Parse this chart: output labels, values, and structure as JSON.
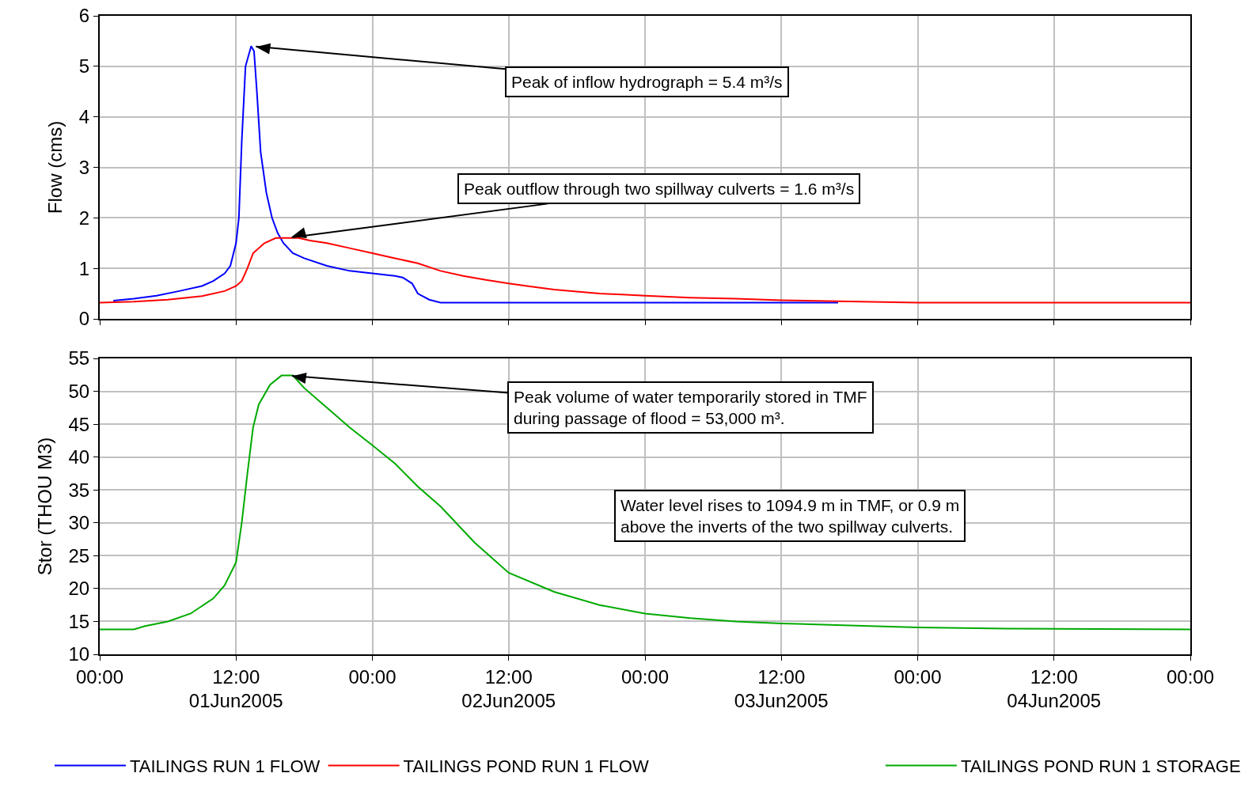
{
  "chart_data": [
    {
      "type": "line",
      "ylabel": "Flow (cms)",
      "tick_labels": "y",
      "xlim": [
        "2005-06-01T00:00",
        "2005-06-05T00:00"
      ],
      "xticks": [
        {
          "value": "2005-06-01T00:00",
          "label": null
        },
        {
          "value": "2005-06-01T12:00",
          "label": null
        },
        {
          "value": "2005-06-02T00:00",
          "label": null
        },
        {
          "value": "2005-06-02T12:00",
          "label": null
        },
        {
          "value": "2005-06-03T00:00",
          "label": null
        },
        {
          "value": "2005-06-03T12:00",
          "label": null
        },
        {
          "value": "2005-06-04T00:00",
          "label": null
        },
        {
          "value": "2005-06-04T12:00",
          "label": null
        },
        {
          "value": "2005-06-05T00:00",
          "label": null
        }
      ],
      "ylim": [
        0,
        6
      ],
      "yticks": [
        0,
        1,
        2,
        3,
        4,
        5,
        6
      ],
      "grid": true,
      "legend": "bottom left",
      "series": [
        {
          "name": "TAILINGS RUN 1 FLOW",
          "color": "#0000ff",
          "x": [
            "2005-06-01T01:12",
            "2005-06-01T03:00",
            "2005-06-01T05:00",
            "2005-06-01T07:00",
            "2005-06-01T09:00",
            "2005-06-01T10:00",
            "2005-06-01T11:00",
            "2005-06-01T11:30",
            "2005-06-01T12:00",
            "2005-06-01T12:15",
            "2005-06-01T12:30",
            "2005-06-01T12:50",
            "2005-06-01T13:20",
            "2005-06-01T13:35",
            "2005-06-01T13:50",
            "2005-06-01T14:10",
            "2005-06-01T14:40",
            "2005-06-01T15:10",
            "2005-06-01T15:40",
            "2005-06-01T16:10",
            "2005-06-01T17:00",
            "2005-06-01T18:00",
            "2005-06-01T20:00",
            "2005-06-01T22:00",
            "2005-06-02T00:00",
            "2005-06-02T02:00",
            "2005-06-02T02:40",
            "2005-06-02T03:30",
            "2005-06-02T04:00",
            "2005-06-02T05:00",
            "2005-06-02T06:00",
            "2005-06-03T17:00"
          ],
          "values": [
            0.36,
            0.4,
            0.46,
            0.55,
            0.65,
            0.75,
            0.9,
            1.05,
            1.5,
            2.0,
            3.5,
            5.0,
            5.4,
            5.3,
            4.5,
            3.3,
            2.5,
            2.0,
            1.7,
            1.5,
            1.3,
            1.2,
            1.05,
            0.95,
            0.9,
            0.85,
            0.82,
            0.7,
            0.5,
            0.38,
            0.32,
            0.32
          ]
        },
        {
          "name": "TAILINGS POND RUN 1 FLOW",
          "color": "#ff0000",
          "x": [
            "2005-06-01T00:00",
            "2005-06-01T03:00",
            "2005-06-01T06:00",
            "2005-06-01T09:00",
            "2005-06-01T11:00",
            "2005-06-01T12:00",
            "2005-06-01T12:30",
            "2005-06-01T13:00",
            "2005-06-01T13:30",
            "2005-06-01T14:30",
            "2005-06-01T15:30",
            "2005-06-01T17:30",
            "2005-06-01T18:30",
            "2005-06-01T20:00",
            "2005-06-01T22:00",
            "2005-06-02T00:00",
            "2005-06-02T02:00",
            "2005-06-02T04:00",
            "2005-06-02T06:00",
            "2005-06-02T08:00",
            "2005-06-02T10:00",
            "2005-06-02T12:00",
            "2005-06-02T14:00",
            "2005-06-02T16:00",
            "2005-06-02T18:00",
            "2005-06-02T20:00",
            "2005-06-02T22:00",
            "2005-06-03T00:00",
            "2005-06-03T04:00",
            "2005-06-03T08:00",
            "2005-06-03T12:00",
            "2005-06-03T17:00",
            "2005-06-04T00:00",
            "2005-06-05T00:00"
          ],
          "values": [
            0.32,
            0.34,
            0.38,
            0.45,
            0.55,
            0.65,
            0.75,
            1.0,
            1.3,
            1.5,
            1.6,
            1.6,
            1.55,
            1.5,
            1.4,
            1.3,
            1.2,
            1.1,
            0.95,
            0.85,
            0.77,
            0.7,
            0.64,
            0.58,
            0.54,
            0.5,
            0.48,
            0.46,
            0.42,
            0.4,
            0.37,
            0.35,
            0.32,
            0.32
          ]
        }
      ],
      "annotations": [
        {
          "text": "Peak of inflow hydrograph = 5.4 m³/s",
          "x": "2005-06-01T13:20",
          "y": 5.4
        },
        {
          "text": "Peak outflow through two spillway culverts = 1.6 m³/s",
          "x": "2005-06-01T16:30",
          "y": 1.6
        }
      ]
    },
    {
      "type": "line",
      "ylabel": "Stor (THOU M3)",
      "xlim": [
        "2005-06-01T00:00",
        "2005-06-05T00:00"
      ],
      "xticks": [
        {
          "value": "2005-06-01T00:00",
          "label": "00:00"
        },
        {
          "value": "2005-06-01T12:00",
          "label": "12:00"
        },
        {
          "value": "2005-06-02T00:00",
          "label": "00:00"
        },
        {
          "value": "2005-06-02T12:00",
          "label": "12:00"
        },
        {
          "value": "2005-06-03T00:00",
          "label": "00:00"
        },
        {
          "value": "2005-06-03T12:00",
          "label": "12:00"
        },
        {
          "value": "2005-06-04T00:00",
          "label": "00:00"
        },
        {
          "value": "2005-06-04T12:00",
          "label": "12:00"
        },
        {
          "value": "2005-06-05T00:00",
          "label": "00:00"
        }
      ],
      "x2lim": [
        "2005-06-01T00:00",
        "2005-06-05T00:00"
      ],
      "x2ticks": [
        {
          "value": "2005-06-01T12:00",
          "label": "01Jun2005"
        },
        {
          "value": "2005-06-02T12:00",
          "label": "02Jun2005"
        },
        {
          "value": "2005-06-03T12:00",
          "label": "03Jun2005"
        },
        {
          "value": "2005-06-04T12:00",
          "label": "04Jun2005"
        }
      ],
      "ylim": [
        10,
        55
      ],
      "yticks": [
        10,
        15,
        20,
        25,
        30,
        35,
        40,
        45,
        50,
        55
      ],
      "grid": true,
      "legend": "bottom right",
      "series": [
        {
          "name": "TAILINGS POND RUN 1 STORAGE",
          "color": "#00aa00",
          "x": [
            "2005-06-01T00:00",
            "2005-06-01T03:00",
            "2005-06-01T04:00",
            "2005-06-01T06:00",
            "2005-06-01T08:00",
            "2005-06-01T10:00",
            "2005-06-01T11:00",
            "2005-06-01T12:00",
            "2005-06-01T12:30",
            "2005-06-01T13:00",
            "2005-06-01T13:30",
            "2005-06-01T14:00",
            "2005-06-01T15:00",
            "2005-06-01T16:00",
            "2005-06-01T17:00",
            "2005-06-01T18:00",
            "2005-06-01T20:00",
            "2005-06-01T22:00",
            "2005-06-02T00:00",
            "2005-06-02T02:00",
            "2005-06-02T04:00",
            "2005-06-02T06:00",
            "2005-06-02T09:00",
            "2005-06-02T12:00",
            "2005-06-02T16:00",
            "2005-06-02T20:00",
            "2005-06-03T00:00",
            "2005-06-03T04:00",
            "2005-06-03T08:00",
            "2005-06-03T12:00",
            "2005-06-03T18:00",
            "2005-06-04T00:00",
            "2005-06-04T08:00",
            "2005-06-05T00:00"
          ],
          "values": [
            13.8,
            13.8,
            14.3,
            15,
            16.2,
            18.5,
            20.5,
            24,
            30,
            37.5,
            44.5,
            48,
            51,
            52.4,
            52.4,
            50.5,
            47.5,
            44.5,
            41.8,
            39,
            35.5,
            32.5,
            27,
            22.4,
            19.5,
            17.5,
            16.2,
            15.5,
            15,
            14.7,
            14.4,
            14.1,
            13.9,
            13.8
          ]
        }
      ],
      "annotations": [
        {
          "text": "Peak volume of water temporarily stored in TMF\nduring passage of flood = 53,000 m³.",
          "x": "2005-06-01T16:30",
          "y": 52.4
        },
        "Water level rises to 1094.9 m in TMF, or 0.9 m\nabove the inverts of the two spillway culverts."
      ]
    }
  ]
}
